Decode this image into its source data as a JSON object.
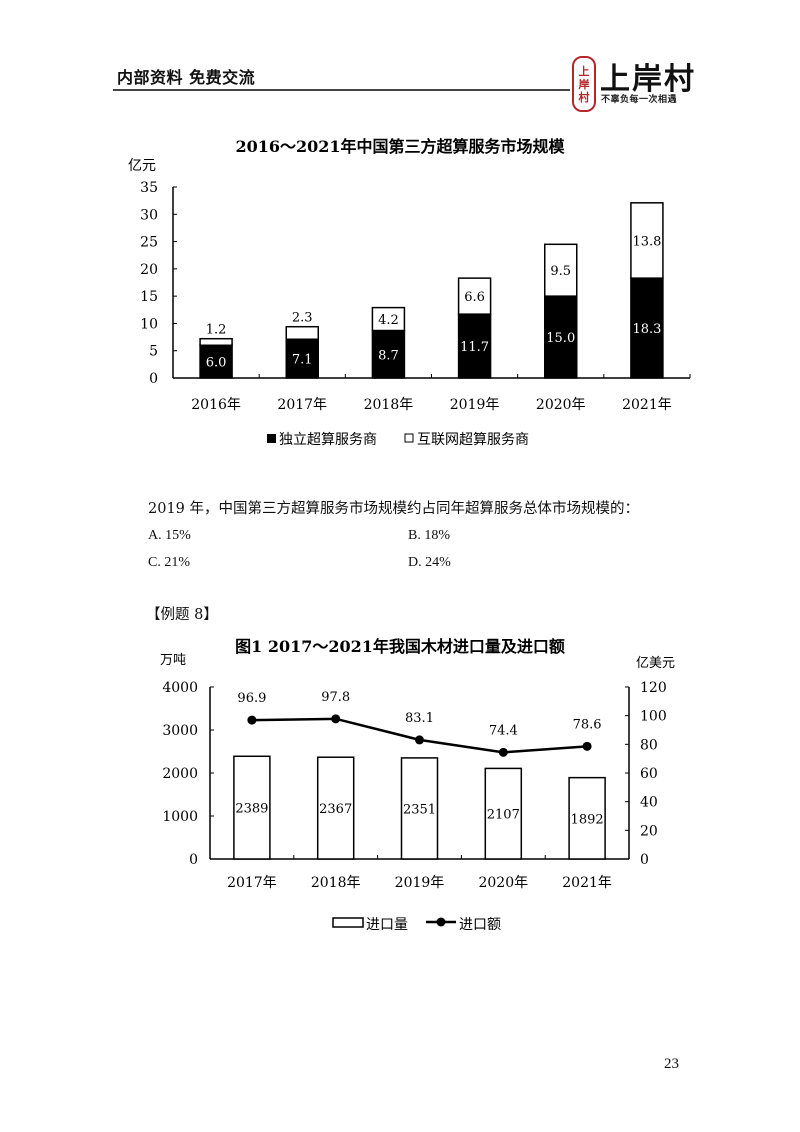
{
  "header": {
    "left_text": "内部资料  免费交流",
    "logo": {
      "seal_chars": [
        "上",
        "岸",
        "村"
      ],
      "name": "上岸村",
      "slogan": "不辜负每一次相遇",
      "accent_color": "#b5262c"
    }
  },
  "question": {
    "stem": "2019 年，中国第三方超算服务市场规模约占同年超算服务总体市场规模的：",
    "options": [
      {
        "key": "A",
        "label": "A. 15%"
      },
      {
        "key": "B",
        "label": "B. 18%"
      },
      {
        "key": "C",
        "label": "C. 21%"
      },
      {
        "key": "D",
        "label": "D. 24%"
      }
    ]
  },
  "example_label": "【例题 8】",
  "page_number": "23",
  "chart_data": [
    {
      "type": "bar",
      "stacked": true,
      "title": "2016～2021年中国第三方超算服务市场规模",
      "ylabel": "亿元",
      "xlabel": "",
      "ylim": [
        0,
        35
      ],
      "yticks": [
        0,
        5,
        10,
        15,
        20,
        25,
        30,
        35
      ],
      "categories": [
        "2016年",
        "2017年",
        "2018年",
        "2019年",
        "2020年",
        "2021年"
      ],
      "series": [
        {
          "name": "独立超算服务商",
          "color": "#000000",
          "values": [
            6.0,
            7.1,
            8.7,
            11.7,
            15.0,
            18.3
          ],
          "labels": [
            "6.0",
            "7.1",
            "8.7",
            "11.7",
            "15.0",
            "18.3"
          ]
        },
        {
          "name": "互联网超算服务商",
          "color": "#ffffff",
          "values": [
            1.2,
            2.3,
            4.2,
            6.6,
            9.5,
            13.8
          ],
          "labels": [
            "1.2",
            "2.3",
            "4.2",
            "6.6",
            "9.5",
            "13.8"
          ]
        }
      ],
      "legend": {
        "position": "bottom",
        "entries": [
          "独立超算服务商",
          "互联网超算服务商"
        ]
      },
      "grid": false
    },
    {
      "type": "bar+line",
      "dual_axis": true,
      "title": "图1   2017～2021年我国木材进口量及进口额",
      "ylabel_left": "万吨",
      "ylabel_right": "亿美元",
      "ylim_left": [
        0,
        4000
      ],
      "yticks_left": [
        0,
        1000,
        2000,
        3000,
        4000
      ],
      "ylim_right": [
        0,
        120
      ],
      "yticks_right": [
        0,
        20,
        40,
        60,
        80,
        100,
        120
      ],
      "categories": [
        "2017年",
        "2018年",
        "2019年",
        "2020年",
        "2021年"
      ],
      "series": [
        {
          "name": "进口量",
          "type": "bar",
          "axis": "left",
          "values": [
            2389,
            2367,
            2351,
            2107,
            1892
          ],
          "labels": [
            "2389",
            "2367",
            "2351",
            "2107",
            "1892"
          ]
        },
        {
          "name": "进口额",
          "type": "line",
          "axis": "right",
          "values": [
            96.9,
            97.8,
            83.1,
            74.4,
            78.6
          ],
          "labels": [
            "96.9",
            "97.8",
            "83.1",
            "74.4",
            "78.6"
          ]
        }
      ],
      "legend": {
        "position": "bottom",
        "entries": [
          "进口量",
          "进口额"
        ]
      },
      "grid": false
    }
  ]
}
